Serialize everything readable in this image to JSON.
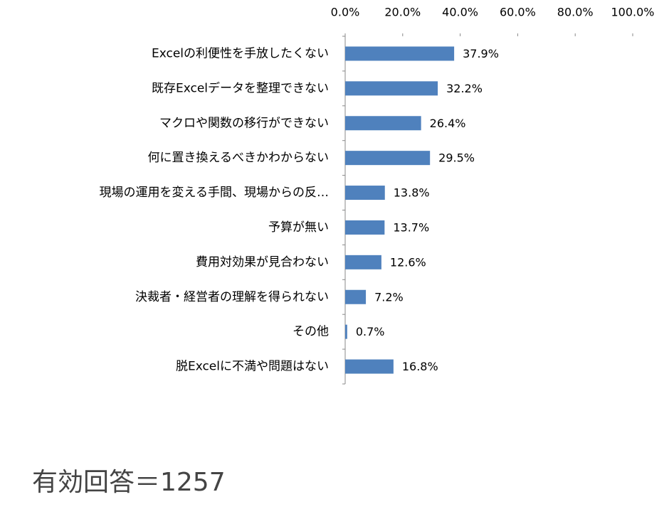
{
  "chart_data": {
    "type": "bar",
    "orientation": "horizontal",
    "categories": [
      "Excelの利便性を手放したくない",
      "既存Excelデータを整理できない",
      "マクロや関数の移行ができない",
      "何に置き換えるべきかわからない",
      "現場の運用を変える手間、現場からの反…",
      "予算が無い",
      "費用対効果が見合わない",
      "決裁者・経営者の理解を得られない",
      "その他",
      "脱Excelに不満や問題はない"
    ],
    "values": [
      37.9,
      32.2,
      26.4,
      29.5,
      13.8,
      13.7,
      12.6,
      7.2,
      0.7,
      16.8
    ],
    "value_labels": [
      "37.9%",
      "32.2%",
      "26.4%",
      "29.5%",
      "13.8%",
      "13.7%",
      "12.6%",
      "7.2%",
      "0.7%",
      "16.8%"
    ],
    "color": "#4f81bd",
    "xlim": [
      0,
      100
    ],
    "xticks": [
      {
        "value": 0,
        "label": "0.0%"
      },
      {
        "value": 20,
        "label": "20.0%"
      },
      {
        "value": 40,
        "label": "40.0%"
      },
      {
        "value": 60,
        "label": "60.0%"
      },
      {
        "value": 80,
        "label": "80.0%"
      },
      {
        "value": 100,
        "label": "100.0%"
      }
    ],
    "annotation": "有効回答＝1257"
  }
}
